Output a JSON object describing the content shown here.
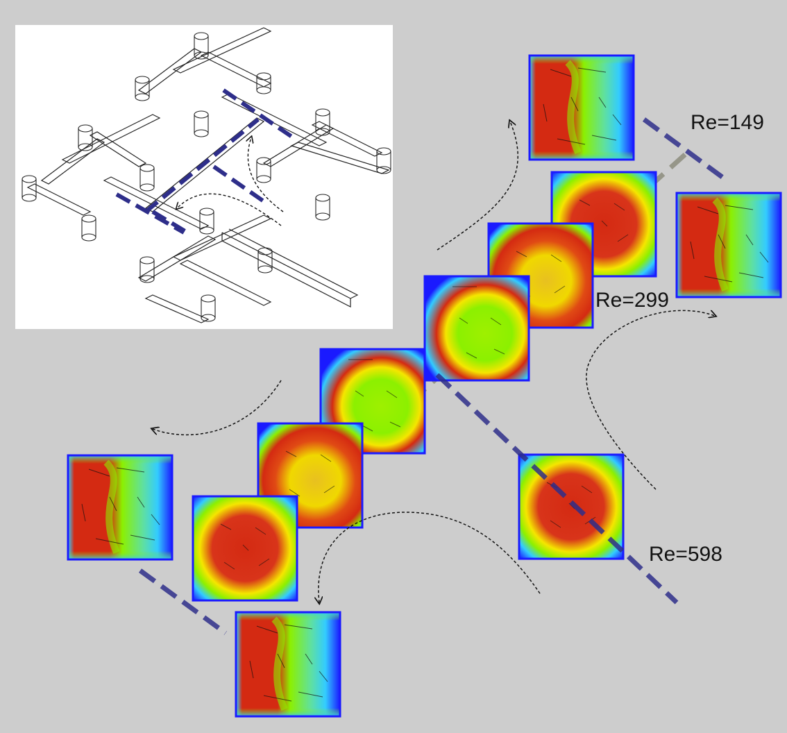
{
  "labels": {
    "re_149": "Re=149",
    "re_299": "Re=299",
    "re_598": "Re=598"
  },
  "colors": {
    "background": "#cdcdcd",
    "inset_background": "#ffffff",
    "cut_line": "#2e2e8a",
    "diagonal_line": "#7a7a66",
    "field_low": "#1a1aff",
    "field_mid_low": "#33ccff",
    "field_mid": "#8cf000",
    "field_mid_high": "#f5e600",
    "field_high": "#d42a12"
  },
  "panels": {
    "re149_outlet_top": "asymmetric",
    "re149_center": "symmetric-core",
    "re149_outlet_right": "asymmetric",
    "re299_center": "symmetric-core",
    "re598_center": "two-vortex",
    "re598_outlet_right": "symmetric-core",
    "re_low_center_a": "two-vortex",
    "re_low_center_b": "symmetric-core",
    "re_low_center_c": "symmetric-core",
    "re_low_outlet_left": "asymmetric",
    "re_low_outlet_bottom": "asymmetric"
  }
}
